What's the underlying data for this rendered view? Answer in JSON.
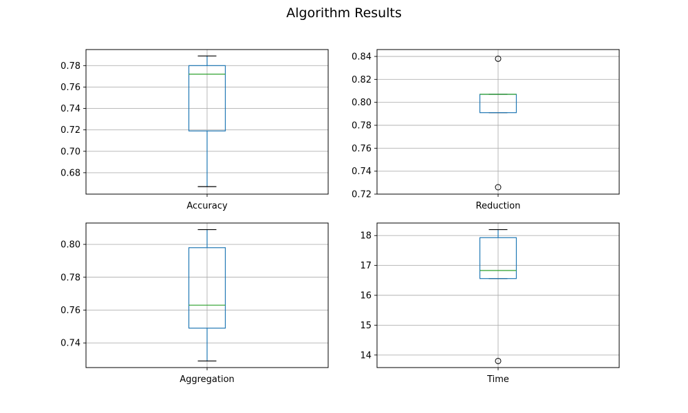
{
  "title": "Algorithm Results",
  "colors": {
    "box": "#1f77b4",
    "median": "#2ca02c",
    "whisker_cap": "#000000",
    "grid": "#b0b0b0",
    "axes": "#000000",
    "background": "#ffffff"
  },
  "chart_data": [
    {
      "type": "box",
      "xlabel": "Accuracy",
      "grid": true,
      "ylim": [
        0.66,
        0.795
      ],
      "yticks": [
        "0.68",
        "0.70",
        "0.72",
        "0.74",
        "0.76",
        "0.78"
      ],
      "ytick_values": [
        0.68,
        0.7,
        0.72,
        0.74,
        0.76,
        0.78
      ],
      "stats": {
        "whislo": 0.667,
        "q1": 0.719,
        "med": 0.772,
        "q3": 0.78,
        "whishi": 0.789
      },
      "fliers": []
    },
    {
      "type": "box",
      "xlabel": "Reduction",
      "grid": true,
      "ylim": [
        0.72,
        0.846
      ],
      "yticks": [
        "0.72",
        "0.74",
        "0.76",
        "0.78",
        "0.80",
        "0.82",
        "0.84"
      ],
      "ytick_values": [
        0.72,
        0.74,
        0.76,
        0.78,
        0.8,
        0.82,
        0.84
      ],
      "stats": {
        "whislo": 0.791,
        "q1": 0.791,
        "med": 0.807,
        "q3": 0.807,
        "whishi": 0.807
      },
      "fliers": [
        0.726,
        0.838
      ]
    },
    {
      "type": "box",
      "xlabel": "Aggregation",
      "grid": true,
      "ylim": [
        0.725,
        0.813
      ],
      "yticks": [
        "0.74",
        "0.76",
        "0.78",
        "0.80"
      ],
      "ytick_values": [
        0.74,
        0.76,
        0.78,
        0.8
      ],
      "stats": {
        "whislo": 0.729,
        "q1": 0.749,
        "med": 0.763,
        "q3": 0.798,
        "whishi": 0.809
      },
      "fliers": []
    },
    {
      "type": "box",
      "xlabel": "Time",
      "grid": true,
      "ylim": [
        13.58,
        18.42
      ],
      "yticks": [
        "14",
        "15",
        "16",
        "17",
        "18"
      ],
      "ytick_values": [
        14,
        15,
        16,
        17,
        18
      ],
      "stats": {
        "whislo": 16.56,
        "q1": 16.56,
        "med": 16.83,
        "q3": 17.93,
        "whishi": 18.2
      },
      "fliers": [
        13.8
      ]
    }
  ]
}
